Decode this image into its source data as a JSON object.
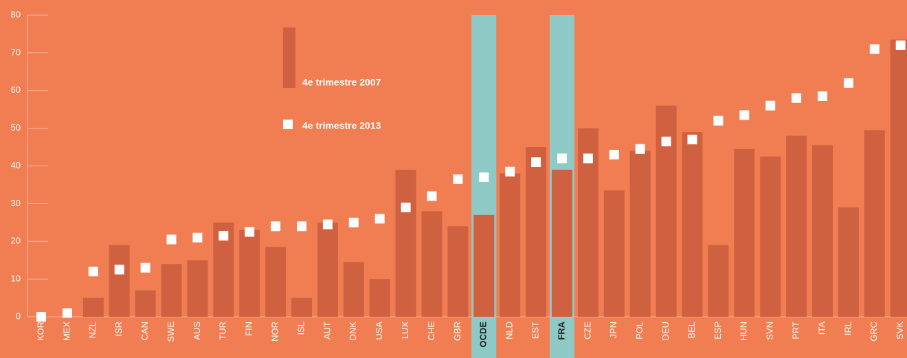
{
  "chart_data": {
    "type": "bar",
    "categories": [
      "KOR",
      "MEX",
      "NZL",
      "ISR",
      "CAN",
      "SWE",
      "AUS",
      "TUR",
      "FIN",
      "NOR",
      "ISL",
      "AUT",
      "DNK",
      "USA",
      "LUX",
      "CHE",
      "GBR",
      "OCDE",
      "NLD",
      "EST",
      "FRA",
      "CZE",
      "JPN",
      "POL",
      "DEU",
      "BEL",
      "ESP",
      "HUN",
      "SVN",
      "PRT",
      "ITA",
      "IRL",
      "GRC",
      "SVK"
    ],
    "series": [
      {
        "name": "4e trimestre 2007",
        "color": "#cf6140",
        "values": [
          0,
          0,
          5,
          19,
          7,
          14,
          15,
          25,
          23,
          18.5,
          5,
          25,
          14.5,
          10,
          39,
          28,
          24,
          27,
          38,
          45,
          39,
          50,
          33.5,
          44,
          56,
          49,
          19,
          44.5,
          42.5,
          48,
          45.5,
          29,
          49.5,
          73.5
        ]
      },
      {
        "name": "4e trimestre 2013",
        "color": "#ffffff",
        "marker": "square",
        "values": [
          0,
          1,
          12,
          12.5,
          13,
          20.5,
          21,
          21.5,
          22.5,
          24,
          24,
          24.5,
          25,
          26,
          29,
          32,
          36.5,
          37,
          38.5,
          41,
          42,
          42,
          43,
          44.5,
          46.5,
          47,
          52,
          53.5,
          56,
          58,
          58.5,
          62,
          71,
          72
        ]
      }
    ],
    "highlight_indices": [
      17,
      20
    ],
    "highlight_color": "#8ec9c6",
    "ylim": [
      0,
      80
    ],
    "yticks": [
      0,
      10,
      20,
      30,
      40,
      50,
      60,
      70,
      80
    ]
  }
}
